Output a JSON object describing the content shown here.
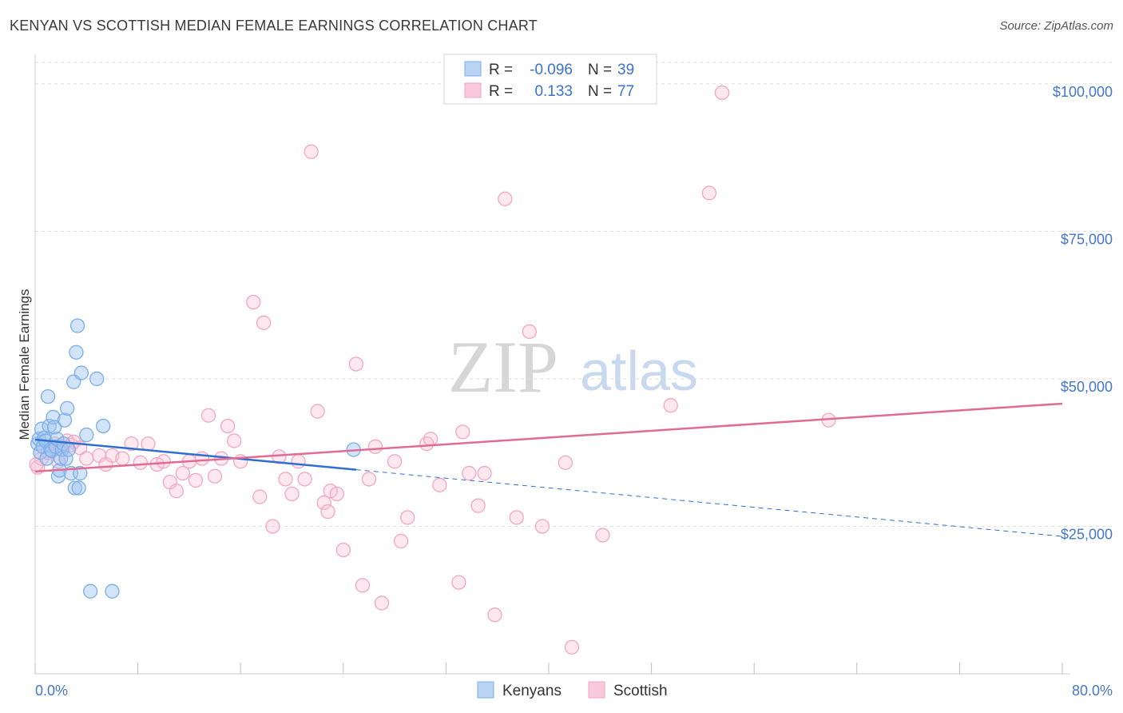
{
  "header": {
    "title": "KENYAN VS SCOTTISH MEDIAN FEMALE EARNINGS CORRELATION CHART",
    "source": "Source: ZipAtlas.com"
  },
  "watermark": {
    "zip": "ZIP",
    "atlas": "atlas"
  },
  "colors": {
    "kenyans": "#7aaee8",
    "kenyans_line": "#2f6fd0",
    "scottish": "#f2a6c0",
    "scottish_line": "#e06b95",
    "tick_label": "#4477cc",
    "grid": "#dddddd"
  },
  "stats_legend": {
    "rows": [
      {
        "r_label": "R =",
        "r_value": "-0.096",
        "n_label": "N =",
        "n_value": "39"
      },
      {
        "r_label": "R =",
        "r_value": "0.133",
        "n_label": "N =",
        "n_value": "77"
      }
    ]
  },
  "chart_data": {
    "type": "scatter",
    "title": "KENYAN VS SCOTTISH MEDIAN FEMALE EARNINGS CORRELATION CHART",
    "xlabel": "",
    "ylabel": "Median Female Earnings",
    "xlim": [
      0,
      80
    ],
    "ylim": [
      0,
      105000
    ],
    "x_tick_labels": [
      "0.0%",
      "80.0%"
    ],
    "y_ticks": [
      25000,
      50000,
      75000,
      100000
    ],
    "y_tick_labels": [
      "$25,000",
      "$50,000",
      "$75,000",
      "$100,000"
    ],
    "grid": true,
    "legend_position": "bottom-center",
    "series": [
      {
        "name": "Kenyans",
        "points": [
          [
            0.2,
            39000
          ],
          [
            0.3,
            39800
          ],
          [
            0.4,
            37500
          ],
          [
            0.5,
            41500
          ],
          [
            0.6,
            38500
          ],
          [
            0.7,
            40000
          ],
          [
            0.8,
            39500
          ],
          [
            0.9,
            36500
          ],
          [
            1.0,
            47000
          ],
          [
            1.1,
            42000
          ],
          [
            1.2,
            38000
          ],
          [
            1.3,
            37800
          ],
          [
            1.4,
            43500
          ],
          [
            1.5,
            41800
          ],
          [
            1.6,
            38500
          ],
          [
            1.7,
            39800
          ],
          [
            1.8,
            33500
          ],
          [
            1.9,
            34500
          ],
          [
            2.0,
            36500
          ],
          [
            2.1,
            38000
          ],
          [
            2.2,
            39000
          ],
          [
            2.3,
            43000
          ],
          [
            2.4,
            36500
          ],
          [
            2.5,
            45000
          ],
          [
            2.6,
            38000
          ],
          [
            2.8,
            34000
          ],
          [
            3.0,
            49500
          ],
          [
            3.1,
            31500
          ],
          [
            3.2,
            54500
          ],
          [
            3.3,
            59000
          ],
          [
            3.4,
            31500
          ],
          [
            3.5,
            34000
          ],
          [
            3.6,
            51000
          ],
          [
            4.0,
            40500
          ],
          [
            4.3,
            14000
          ],
          [
            4.8,
            50000
          ],
          [
            5.3,
            42000
          ],
          [
            6.0,
            14000
          ],
          [
            24.8,
            38000
          ]
        ],
        "trend": {
          "x": [
            0,
            25,
            80
          ],
          "y": [
            39700,
            34600,
            23300
          ]
        }
      },
      {
        "name": "Scottish",
        "points": [
          [
            0.2,
            35000
          ],
          [
            0.5,
            36500
          ],
          [
            1.0,
            37500
          ],
          [
            1.5,
            39000
          ],
          [
            2.0,
            38500
          ],
          [
            2.5,
            39500
          ],
          [
            2.8,
            38800
          ],
          [
            3.0,
            39300
          ],
          [
            3.5,
            38300
          ],
          [
            4.0,
            36500
          ],
          [
            5.0,
            37000
          ],
          [
            5.5,
            35500
          ],
          [
            6.0,
            37000
          ],
          [
            6.8,
            36500
          ],
          [
            7.5,
            39000
          ],
          [
            8.2,
            35800
          ],
          [
            8.8,
            39000
          ],
          [
            9.5,
            35500
          ],
          [
            10.0,
            36000
          ],
          [
            10.5,
            32500
          ],
          [
            11.0,
            31000
          ],
          [
            11.5,
            34000
          ],
          [
            12.0,
            36000
          ],
          [
            12.5,
            32800
          ],
          [
            13.0,
            36500
          ],
          [
            13.5,
            43800
          ],
          [
            14.0,
            33500
          ],
          [
            14.5,
            36500
          ],
          [
            15.0,
            42000
          ],
          [
            15.5,
            39500
          ],
          [
            16.0,
            36000
          ],
          [
            17.0,
            63000
          ],
          [
            17.5,
            30000
          ],
          [
            17.8,
            59500
          ],
          [
            18.5,
            25000
          ],
          [
            19.0,
            36800
          ],
          [
            19.5,
            33000
          ],
          [
            20.0,
            30500
          ],
          [
            20.5,
            36000
          ],
          [
            21.0,
            33000
          ],
          [
            21.5,
            88500
          ],
          [
            22.0,
            44500
          ],
          [
            22.5,
            29000
          ],
          [
            22.8,
            27500
          ],
          [
            23.0,
            31000
          ],
          [
            23.5,
            30500
          ],
          [
            24.0,
            21000
          ],
          [
            25.0,
            52500
          ],
          [
            25.5,
            15000
          ],
          [
            26.0,
            33000
          ],
          [
            26.5,
            38500
          ],
          [
            27.0,
            12000
          ],
          [
            28.0,
            36000
          ],
          [
            28.5,
            22500
          ],
          [
            29.0,
            26500
          ],
          [
            30.5,
            39000
          ],
          [
            30.8,
            39800
          ],
          [
            31.5,
            32000
          ],
          [
            33.0,
            15500
          ],
          [
            33.3,
            41000
          ],
          [
            33.8,
            34000
          ],
          [
            34.5,
            28500
          ],
          [
            35.0,
            34000
          ],
          [
            35.8,
            10000
          ],
          [
            36.6,
            80500
          ],
          [
            37.5,
            26500
          ],
          [
            38.5,
            58000
          ],
          [
            39.5,
            25000
          ],
          [
            41.3,
            35800
          ],
          [
            41.8,
            4500
          ],
          [
            44.2,
            23500
          ],
          [
            49.5,
            45500
          ],
          [
            52.5,
            81500
          ],
          [
            53.5,
            98500
          ],
          [
            61.8,
            43000
          ],
          [
            0.1,
            35500
          ],
          [
            1.8,
            36000
          ]
        ],
        "trend": {
          "x": [
            0,
            80
          ],
          "y": [
            34300,
            45800
          ]
        }
      }
    ]
  },
  "bottom_legend": {
    "items": [
      {
        "label": "Kenyans"
      },
      {
        "label": "Scottish"
      }
    ]
  }
}
